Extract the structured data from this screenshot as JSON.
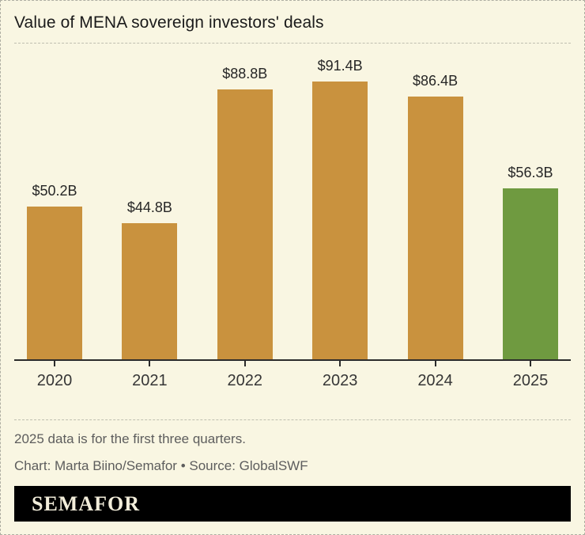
{
  "header": {
    "title": "Value of MENA sovereign investors' deals"
  },
  "chart_data": {
    "type": "bar",
    "title": "Value of MENA sovereign investors' deals",
    "categories": [
      "2020",
      "2021",
      "2022",
      "2023",
      "2024",
      "2025"
    ],
    "values": [
      50.2,
      44.8,
      88.8,
      91.4,
      86.4,
      56.3
    ],
    "value_labels": [
      "$50.2B",
      "$44.8B",
      "$88.8B",
      "$91.4B",
      "$86.4B",
      "$56.3B"
    ],
    "bar_colors": [
      "#C9923E",
      "#C9923E",
      "#C9923E",
      "#C9923E",
      "#C9923E",
      "#6F9A40"
    ],
    "xlabel": "",
    "ylabel": "",
    "ylim": [
      0,
      95
    ],
    "grid": false,
    "legend": "none"
  },
  "footer": {
    "note": "2025 data is for the first three quarters.",
    "credit": "Chart: Marta Biino/Semafor • Source: GlobalSWF",
    "logo_text": "SEMAFOR"
  },
  "colors": {
    "background": "#F9F6E2",
    "bar_default": "#C9923E",
    "bar_highlight": "#6F9A40",
    "text_dark": "#262626",
    "text_muted": "#5D5D5D",
    "logo_background": "#000000",
    "logo_text": "#F2EDDA"
  }
}
